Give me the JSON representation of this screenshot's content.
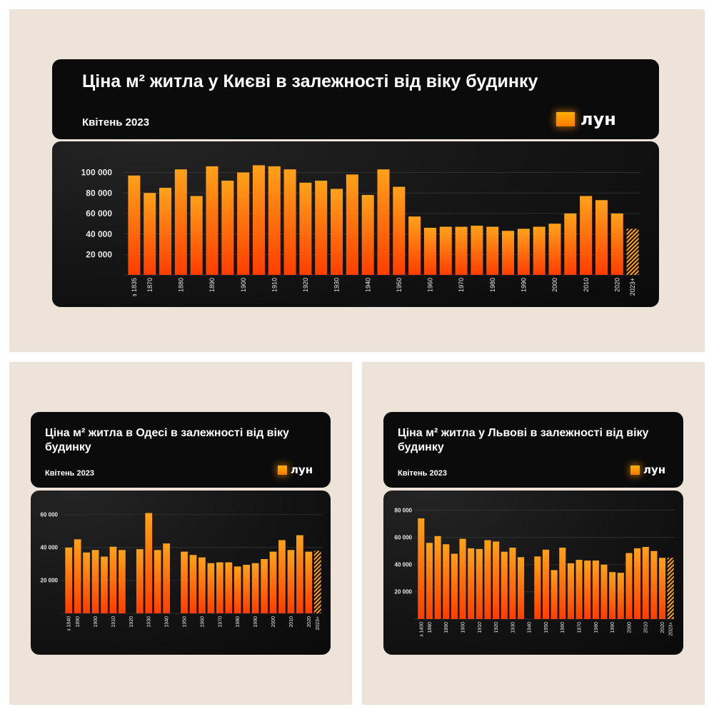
{
  "colors": {
    "background": "#ede3d8",
    "card": "#0b0b0b",
    "bar_top": "#ffa21a",
    "bar_bottom": "#ff3d00",
    "logo": "#ff9900"
  },
  "charts": [
    {
      "title": "Ціна м² житла у Києві в залежності від віку будинку",
      "subtitle": "Квітень 2023",
      "logo_text": "лун",
      "chart_data": {
        "type": "bar",
        "x_labels": [
          "з 1835",
          "1870",
          "",
          "1880",
          "",
          "1890",
          "",
          "1900",
          "",
          "1910",
          "",
          "1920",
          "",
          "1930",
          "",
          "1940",
          "",
          "1950",
          "",
          "1960",
          "",
          "1970",
          "",
          "1980",
          "",
          "1990",
          "",
          "2000",
          "",
          "2010",
          "",
          "2020",
          "2023+"
        ],
        "values": [
          97000,
          80000,
          85000,
          103000,
          77000,
          106000,
          92000,
          100000,
          107000,
          106000,
          103000,
          90000,
          92000,
          84000,
          98000,
          78000,
          103000,
          86000,
          57000,
          46000,
          47000,
          47000,
          48000,
          47000,
          43000,
          45000,
          47000,
          50000,
          60000,
          77000,
          73000,
          60000,
          45000
        ],
        "yticks": [
          20000,
          40000,
          60000,
          80000,
          100000
        ],
        "ytick_labels": [
          "20 000",
          "40 000",
          "60 000",
          "80 000",
          "100 000"
        ],
        "ylim": [
          0,
          115000
        ],
        "hatched_last": true
      }
    },
    {
      "title": "Ціна м² житла в Одесі в залежності від віку будинку",
      "subtitle": "Квітень 2023",
      "logo_text": "лун",
      "chart_data": {
        "type": "bar",
        "x_labels": [
          "з 1840",
          "1890",
          "",
          "1900",
          "",
          "1910",
          "",
          "1920",
          "",
          "1930",
          "",
          "1940",
          "",
          "1950",
          "",
          "1960",
          "",
          "1970",
          "",
          "1980",
          "",
          "1990",
          "",
          "2000",
          "",
          "2010",
          "",
          "2020",
          "2023+"
        ],
        "values": [
          40000,
          45000,
          37000,
          38500,
          34500,
          40500,
          38500,
          null,
          39000,
          61000,
          38500,
          42500,
          null,
          37500,
          35500,
          34000,
          30500,
          31000,
          31000,
          28500,
          29500,
          30500,
          33000,
          37500,
          44500,
          38500,
          47500,
          37500,
          38000
        ],
        "yticks": [
          20000,
          40000,
          60000
        ],
        "ytick_labels": [
          "20 000",
          "40 000",
          "60 000"
        ],
        "ylim": [
          0,
          66000
        ],
        "hatched_last": true
      }
    },
    {
      "title": "Ціна м² житла у Львові в залежності від віку будинку",
      "subtitle": "Квітень 2023",
      "logo_text": "лун",
      "chart_data": {
        "type": "bar",
        "x_labels": [
          "з 1400",
          "1880",
          "",
          "1890",
          "",
          "1900",
          "",
          "1910",
          "",
          "1920",
          "",
          "1930",
          "",
          "1940",
          "",
          "1950",
          "",
          "1960",
          "",
          "1970",
          "",
          "1980",
          "",
          "1990",
          "",
          "2000",
          "",
          "2010",
          "",
          "2020",
          "2023+"
        ],
        "values": [
          74000,
          56000,
          61000,
          55000,
          48000,
          59000,
          52000,
          51500,
          58000,
          57000,
          49500,
          52500,
          45500,
          null,
          46000,
          51000,
          36000,
          52500,
          41000,
          43500,
          43000,
          43000,
          40000,
          34500,
          34000,
          48500,
          52000,
          53000,
          50000,
          45000,
          45000
        ],
        "yticks": [
          20000,
          40000,
          60000,
          80000
        ],
        "ytick_labels": [
          "20 000",
          "40 000",
          "60 000",
          "80 000"
        ],
        "ylim": [
          0,
          84000
        ],
        "hatched_last": true
      }
    }
  ]
}
